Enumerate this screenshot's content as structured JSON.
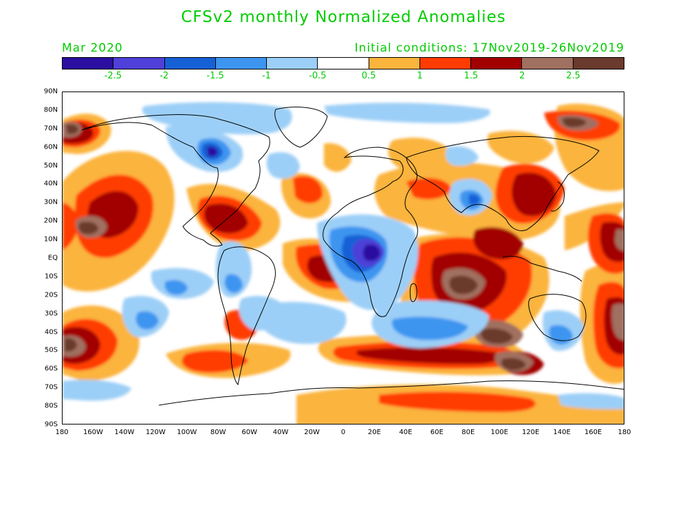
{
  "header": {
    "title": "CFSv2 monthly Normalized Anomalies",
    "month": "Mar 2020",
    "initial_conditions": "Initial conditions: 17Nov2019-26Nov2019"
  },
  "colorbar": {
    "colors": [
      "#2a0fa0",
      "#4e40d8",
      "#1660d6",
      "#3e95f0",
      "#9ccff7",
      "#ffffff",
      "#fbb43c",
      "#ff3c00",
      "#a20000",
      "#a07060",
      "#6a3a2c"
    ],
    "labels": [
      "-2.5",
      "-2",
      "-1.5",
      "-1",
      "-0.5",
      "0.5",
      "1",
      "1.5",
      "2",
      "2.5"
    ]
  },
  "axes": {
    "lat_labels": [
      "90N",
      "80N",
      "70N",
      "60N",
      "50N",
      "40N",
      "30N",
      "20N",
      "10N",
      "EQ",
      "10S",
      "20S",
      "30S",
      "40S",
      "50S",
      "60S",
      "70S",
      "80S",
      "90S"
    ],
    "lon_labels": [
      "180",
      "160W",
      "140W",
      "120W",
      "100W",
      "80W",
      "60W",
      "40W",
      "20W",
      "0",
      "20E",
      "40E",
      "60E",
      "80E",
      "100E",
      "120E",
      "140E",
      "160E",
      "180"
    ]
  }
}
